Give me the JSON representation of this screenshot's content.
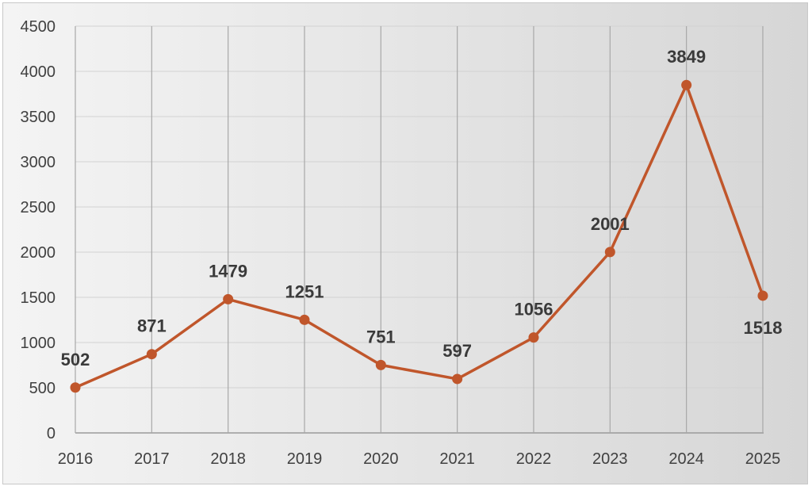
{
  "chart_data": {
    "type": "line",
    "title": "",
    "xlabel": "",
    "ylabel": "",
    "x": [
      "2016",
      "2017",
      "2018",
      "2019",
      "2020",
      "2021",
      "2022",
      "2023",
      "2024",
      "2025"
    ],
    "series": [
      {
        "values": [
          502,
          871,
          1479,
          1251,
          751,
          597,
          1056,
          2001,
          3849,
          1518
        ],
        "color": "#c0562b"
      }
    ],
    "ylim": [
      0,
      4500
    ],
    "yticks": [
      "0",
      "500",
      "1000",
      "1500",
      "2000",
      "2500",
      "3000",
      "3500",
      "4000",
      "4500"
    ],
    "data_labels": [
      "502",
      "871",
      "1479",
      "1251",
      "751",
      "597",
      "1056",
      "2001",
      "3849",
      "1518"
    ],
    "grid": {
      "horizontal": true,
      "vertical": true
    },
    "legend": "none"
  }
}
